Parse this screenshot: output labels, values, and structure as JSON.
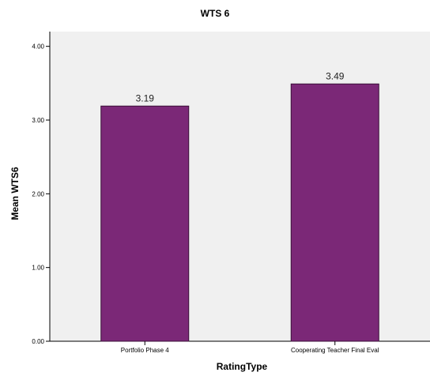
{
  "chart_data": {
    "type": "bar",
    "title": "WTS 6",
    "xlabel": "RatingType",
    "ylabel": "Mean WTS6",
    "categories": [
      "Portfolio Phase 4",
      "Cooperating Teacher Final Eval"
    ],
    "values": [
      3.19,
      3.49
    ],
    "data_labels": [
      "3.19",
      "3.49"
    ],
    "ylim": [
      0,
      4.2
    ],
    "yticks": [
      0,
      1,
      2,
      3,
      4
    ],
    "ytick_labels": [
      "0.00",
      "1.00",
      "2.00",
      "3.00",
      "4.00"
    ],
    "grid": false,
    "legend": "none",
    "colors": {
      "bar_fill": "#7B2877",
      "bar_stroke": "#3a1038",
      "plot_background": "#f0f0f0",
      "axis": "#000000"
    }
  }
}
